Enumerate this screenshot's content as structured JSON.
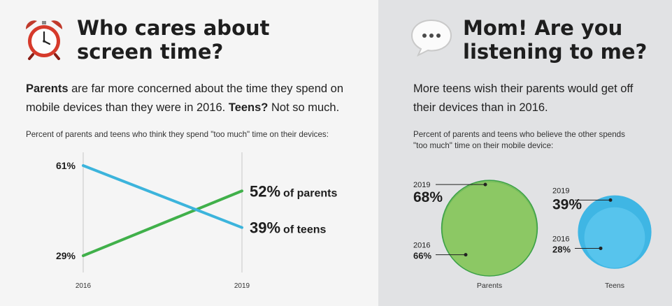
{
  "left_panel": {
    "title_line1": "Who cares about",
    "title_line2": "screen time?",
    "lead_bold1": "Parents",
    "lead_text1": " are far more concerned about the time they spend on mobile devices than they were in 2016. ",
    "lead_bold2": "Teens?",
    "lead_text2": " Not so much.",
    "caption": "Percent of parents and teens who think they spend \"too much\" time on their devices:",
    "icon": "alarm-clock-icon"
  },
  "right_panel": {
    "title_line1": "Mom! Are you",
    "title_line2": "listening to me?",
    "lead": "More teens wish their parents would get off their devices than in 2016.",
    "caption": "Percent of parents and teens who believe the other spends \"too much\" time on their mobile device:",
    "icon": "speech-bubble-icon"
  },
  "colors": {
    "left_background": "#f5f5f5",
    "right_background": "#e1e2e4",
    "parents_line": "#40b04a",
    "teens_line": "#3cb4dc",
    "parents_circle": "#8cc864",
    "parents_circle_stroke": "#3aa046",
    "teens_circle": "#3fb6e4",
    "teens_circle_inner": "#5ac6ee"
  },
  "chart_data": [
    {
      "type": "line",
      "x": [
        "2016",
        "2019"
      ],
      "series": [
        {
          "name": "parents",
          "values": [
            29,
            52
          ],
          "value_labels": [
            "29%",
            "52%"
          ],
          "end_suffix": "of parents"
        },
        {
          "name": "teens",
          "values": [
            61,
            39
          ],
          "value_labels": [
            "61%",
            "39%"
          ],
          "end_suffix": "of teens"
        }
      ],
      "ylim": [
        29,
        61
      ],
      "grid": false
    },
    {
      "type": "bubble",
      "categories": [
        "Parents",
        "Teens"
      ],
      "series": [
        {
          "name": "2019",
          "values": [
            68,
            39
          ],
          "value_labels": [
            "68%",
            "39%"
          ]
        },
        {
          "name": "2016",
          "values": [
            66,
            28
          ],
          "value_labels": [
            "66%",
            "28%"
          ]
        }
      ]
    }
  ]
}
